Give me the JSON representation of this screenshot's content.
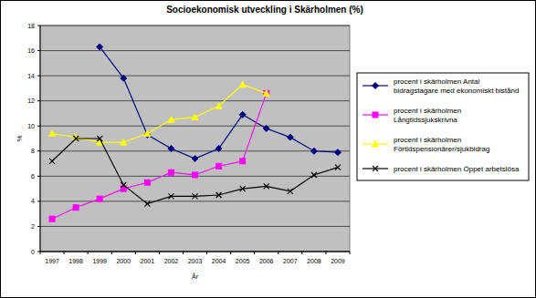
{
  "chart_data": {
    "type": "line",
    "title": "Socioekonomisk utveckling i Skärholmen (%)",
    "x_label": "År",
    "y_label": "%",
    "categories": [
      "1997",
      "1998",
      "1999",
      "2000",
      "2001",
      "2002",
      "2003",
      "2004",
      "2005",
      "2006",
      "2007",
      "2008",
      "2009"
    ],
    "ylim": [
      0,
      18
    ],
    "yticks": [
      0,
      2,
      4,
      6,
      8,
      10,
      12,
      14,
      16,
      18
    ],
    "grid": true,
    "legend": "right",
    "series": [
      {
        "name": "procent i skärholmen Antal bidragstagare med ekonomiskt bistånd",
        "color": "#000080",
        "marker": "diamond",
        "values": [
          null,
          null,
          16.3,
          13.8,
          9.3,
          8.2,
          7.4,
          8.2,
          10.9,
          9.8,
          9.1,
          8.0,
          7.9
        ]
      },
      {
        "name": "procent i skärholmen Långtidssjukskrivna",
        "color": "#ff00ff",
        "marker": "square",
        "values": [
          2.6,
          3.5,
          4.2,
          5.0,
          5.5,
          6.3,
          6.1,
          6.8,
          7.2,
          12.6,
          null,
          null,
          null
        ]
      },
      {
        "name": "procent i skärholmen Förtidspensionärer/sjukbidrag",
        "color": "#ffff00",
        "marker": "triangle",
        "values": [
          9.4,
          9.1,
          8.7,
          8.7,
          9.4,
          10.5,
          10.7,
          11.6,
          13.3,
          12.6,
          null,
          null,
          null
        ]
      },
      {
        "name": "procent i skärholmen Öppet arbetslösa",
        "color": "#000000",
        "marker": "x",
        "values": [
          7.2,
          9.0,
          9.0,
          5.3,
          3.8,
          4.4,
          4.4,
          4.5,
          5.0,
          5.2,
          4.8,
          6.1,
          6.7
        ]
      }
    ]
  }
}
